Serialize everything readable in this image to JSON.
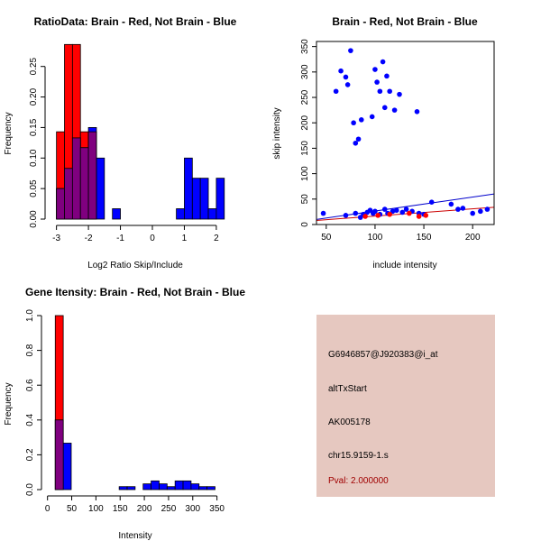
{
  "colors": {
    "red": "#ff0000",
    "blue": "#0000ff",
    "overlap": "#7f007f",
    "panel_bg": "#e6c8c0",
    "pval": "#a00000",
    "red_line": "#cc0000",
    "blue_line": "#0000cc"
  },
  "chart_data": [
    {
      "id": "ratio",
      "type": "histogram",
      "title": "RatioData: Brain - Red, Not Brain - Blue",
      "xlabel": "Log2 Ratio Skip/Include",
      "ylabel": "Frequency",
      "xlim": [
        -3.3,
        2.2
      ],
      "ylim": [
        0,
        0.285
      ],
      "x_ticks": [
        -3,
        -2,
        -1,
        0,
        1,
        2
      ],
      "x_tick_labels": [
        "-3",
        "-2",
        "-1",
        "0",
        "1",
        "2"
      ],
      "y_ticks": [
        0,
        0.05,
        0.1,
        0.15,
        0.2,
        0.25
      ],
      "y_tick_labels": [
        "0.00",
        "0.05",
        "0.10",
        "0.15",
        "0.20",
        "0.25"
      ],
      "bin_width": 0.25,
      "series": [
        {
          "name": "Brain",
          "color": "red",
          "bins": [
            [
              -3.0,
              0.143
            ],
            [
              -2.75,
              0.286
            ],
            [
              -2.5,
              0.286
            ],
            [
              -2.25,
              0.143
            ],
            [
              -2.0,
              0.143
            ]
          ]
        },
        {
          "name": "Not Brain",
          "color": "blue",
          "bins": [
            [
              -3.0,
              0.05
            ],
            [
              -2.75,
              0.083
            ],
            [
              -2.5,
              0.133
            ],
            [
              -2.25,
              0.117
            ],
            [
              -2.0,
              0.15
            ],
            [
              -1.75,
              0.1
            ],
            [
              -1.25,
              0.017
            ],
            [
              0.75,
              0.017
            ],
            [
              1.0,
              0.1
            ],
            [
              1.25,
              0.067
            ],
            [
              1.5,
              0.067
            ],
            [
              1.75,
              0.017
            ],
            [
              2.0,
              0.067
            ]
          ]
        }
      ]
    },
    {
      "id": "scatter",
      "type": "scatter",
      "title": "Brain - Red, Not Brain - Blue",
      "xlabel": "include intensity",
      "ylabel": "skip intensity",
      "xlim": [
        40,
        222
      ],
      "ylim": [
        0,
        360
      ],
      "x_ticks": [
        50,
        100,
        150,
        200
      ],
      "x_tick_labels": [
        "50",
        "100",
        "150",
        "200"
      ],
      "y_ticks": [
        0,
        50,
        100,
        150,
        200,
        250,
        300,
        350
      ],
      "y_tick_labels": [
        "0",
        "50",
        "100",
        "150",
        "200",
        "250",
        "300",
        "350"
      ],
      "series": [
        {
          "name": "Not Brain",
          "color": "blue",
          "points": [
            [
              60,
              262
            ],
            [
              65,
              302
            ],
            [
              70,
              290
            ],
            [
              72,
              275
            ],
            [
              75,
              342
            ],
            [
              78,
              200
            ],
            [
              80,
              160
            ],
            [
              83,
              168
            ],
            [
              86,
              206
            ],
            [
              97,
              212
            ],
            [
              100,
              305
            ],
            [
              102,
              280
            ],
            [
              105,
              262
            ],
            [
              108,
              320
            ],
            [
              110,
              230
            ],
            [
              112,
              292
            ],
            [
              115,
              262
            ],
            [
              120,
              225
            ],
            [
              125,
              256
            ],
            [
              143,
              222
            ],
            [
              47,
              22
            ],
            [
              70,
              18
            ],
            [
              80,
              22
            ],
            [
              85,
              14
            ],
            [
              88,
              20
            ],
            [
              92,
              24
            ],
            [
              95,
              28
            ],
            [
              98,
              22
            ],
            [
              100,
              26
            ],
            [
              105,
              20
            ],
            [
              110,
              30
            ],
            [
              113,
              22
            ],
            [
              118,
              26
            ],
            [
              122,
              28
            ],
            [
              128,
              24
            ],
            [
              132,
              30
            ],
            [
              138,
              26
            ],
            [
              145,
              22
            ],
            [
              150,
              20
            ],
            [
              158,
              44
            ],
            [
              178,
              40
            ],
            [
              185,
              30
            ],
            [
              190,
              32
            ],
            [
              200,
              22
            ],
            [
              208,
              26
            ],
            [
              215,
              30
            ]
          ]
        },
        {
          "name": "Brain",
          "color": "red",
          "points": [
            [
              90,
              16
            ],
            [
              103,
              18
            ],
            [
              115,
              20
            ],
            [
              135,
              22
            ],
            [
              145,
              16
            ],
            [
              152,
              18
            ]
          ]
        }
      ],
      "fit_lines": [
        {
          "name": "Not Brain fit",
          "color": "blue_line",
          "from": [
            40,
            10
          ],
          "to": [
            222,
            60
          ]
        },
        {
          "name": "Brain fit",
          "color": "red_line",
          "from": [
            40,
            8
          ],
          "to": [
            222,
            34
          ]
        }
      ]
    },
    {
      "id": "intensity",
      "type": "histogram",
      "title": "Gene Itensity: Brain - Red, Not Brain - Blue",
      "xlabel": "Intensity",
      "ylabel": "Frequency",
      "xlim": [
        -5,
        360
      ],
      "ylim": [
        0,
        1.0
      ],
      "x_ticks": [
        0,
        50,
        100,
        150,
        200,
        250,
        300,
        350
      ],
      "x_tick_labels": [
        "0",
        "50",
        "100",
        "150",
        "200",
        "250",
        "300",
        "350"
      ],
      "y_ticks": [
        0,
        0.2,
        0.4,
        0.6,
        0.8,
        1.0
      ],
      "y_tick_labels": [
        "0.0",
        "0.2",
        "0.4",
        "0.6",
        "0.8",
        "1.0"
      ],
      "bin_width": 16.5,
      "series": [
        {
          "name": "Brain",
          "color": "red",
          "bins": [
            [
              16,
              1.0
            ]
          ]
        },
        {
          "name": "Not Brain",
          "color": "blue",
          "bins": [
            [
              16,
              0.4
            ],
            [
              32.5,
              0.267
            ],
            [
              148,
              0.017
            ],
            [
              164.5,
              0.017
            ],
            [
              197.5,
              0.033
            ],
            [
              214,
              0.05
            ],
            [
              230.5,
              0.033
            ],
            [
              247,
              0.017
            ],
            [
              263.5,
              0.05
            ],
            [
              280,
              0.05
            ],
            [
              296.5,
              0.033
            ],
            [
              313,
              0.017
            ],
            [
              329.5,
              0.017
            ]
          ]
        }
      ]
    }
  ],
  "info_panel": {
    "probe_id": "G6946857@J920383@i_at",
    "event_type": "altTxStart",
    "accession": "AK005178",
    "location": "chr15.9159-1.s",
    "pval": "Pval: 2.000000"
  }
}
